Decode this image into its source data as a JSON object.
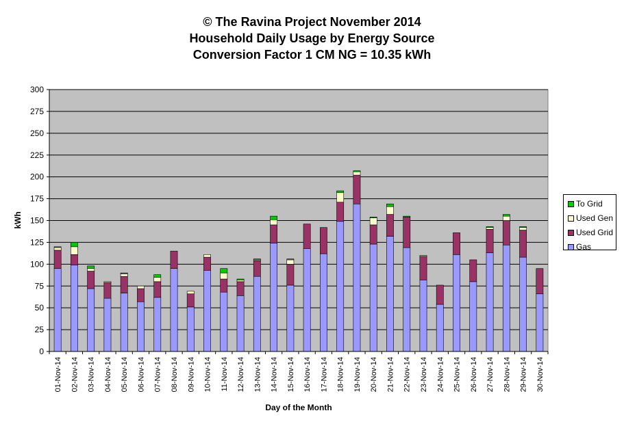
{
  "title_lines": [
    "© The Ravina Project November 2014",
    "Household Daily Usage by Energy Source",
    "Conversion Factor 1 CM NG = 10.35 kWh"
  ],
  "colors": {
    "plot_bg": "#c0c0c0",
    "gas": "#9999ff",
    "used_grid": "#993366",
    "used_gen": "#ffffcc",
    "to_grid": "#00cc00"
  },
  "chart_data": {
    "type": "bar",
    "stacked": true,
    "title": "© The Ravina Project November 2014 / Household Daily Usage by Energy Source / Conversion Factor 1 CM NG = 10.35 kWh",
    "xlabel": "Day of the Month",
    "ylabel": "kWh",
    "ylim": [
      0,
      300
    ],
    "yticks": [
      0,
      25,
      50,
      75,
      100,
      125,
      150,
      175,
      200,
      225,
      250,
      275,
      300
    ],
    "grid": true,
    "legend_position": "right",
    "categories": [
      "01-Nov-14",
      "02-Nov-14",
      "03-Nov-14",
      "04-Nov-14",
      "05-Nov-14",
      "06-Nov-14",
      "07-Nov-14",
      "08-Nov-14",
      "09-Nov-14",
      "10-Nov-14",
      "11-Nov-14",
      "12-Nov-14",
      "13-Nov-14",
      "14-Nov-14",
      "15-Nov-14",
      "16-Nov-14",
      "17-Nov-14",
      "18-Nov-14",
      "19-Nov-14",
      "20-Nov-14",
      "21-Nov-14",
      "22-Nov-14",
      "23-Nov-14",
      "24-Nov-14",
      "25-Nov-14",
      "26-Nov-14",
      "27-Nov-14",
      "28-Nov-14",
      "29-Nov-14",
      "30-Nov-14"
    ],
    "series": [
      {
        "name": "Gas",
        "color_key": "gas",
        "values": [
          95,
          99,
          72,
          61,
          67,
          57,
          62,
          95,
          51,
          93,
          68,
          64,
          86,
          124,
          76,
          118,
          112,
          149,
          169,
          123,
          132,
          119,
          82,
          54,
          111,
          80,
          113,
          122,
          108,
          66
        ]
      },
      {
        "name": "Used Grid",
        "color_key": "used_grid",
        "values": [
          21,
          12,
          20,
          18,
          19,
          15,
          18,
          20,
          15,
          15,
          15,
          16,
          18,
          21,
          24,
          28,
          30,
          22,
          33,
          22,
          25,
          35,
          27,
          22,
          25,
          25,
          27,
          28,
          31,
          29
        ]
      },
      {
        "name": "Used Gen",
        "color_key": "used_gen",
        "values": [
          3,
          9,
          3,
          1,
          3,
          3,
          5,
          0,
          3,
          3,
          7,
          2,
          1,
          6,
          5,
          0,
          0,
          11,
          4,
          8,
          9,
          0,
          1,
          0,
          0,
          0,
          2,
          5,
          3,
          0
        ]
      },
      {
        "name": "To Grid",
        "color_key": "to_grid",
        "values": [
          1,
          5,
          3,
          0,
          1,
          0,
          3,
          0,
          0,
          0,
          5,
          1,
          1,
          4,
          1,
          0,
          0,
          2,
          1,
          1,
          3,
          1,
          0,
          0,
          0,
          0,
          1,
          2,
          1,
          0
        ]
      }
    ],
    "legend_order": [
      "To Grid",
      "Used Gen",
      "Used Grid",
      "Gas"
    ]
  }
}
